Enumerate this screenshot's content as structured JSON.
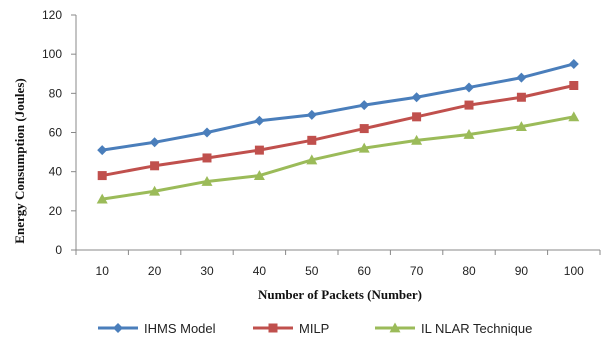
{
  "chart_data": {
    "type": "line",
    "xlabel": "Number  of Packets (Number)",
    "ylabel": "Energy  Consumption  (Joules)",
    "categories": [
      "10",
      "20",
      "30",
      "40",
      "50",
      "60",
      "70",
      "80",
      "90",
      "100"
    ],
    "ylim": [
      0,
      120
    ],
    "yticks": [
      "0",
      "20",
      "40",
      "60",
      "80",
      "100",
      "120"
    ],
    "grid": false,
    "legend": "bottom",
    "series": [
      {
        "name": "IHMS Model",
        "color": "#4a7ebb",
        "marker": "diamond",
        "values": [
          51,
          55,
          60,
          66,
          69,
          74,
          78,
          83,
          88,
          95
        ]
      },
      {
        "name": "MILP",
        "color": "#c0504d",
        "marker": "square",
        "values": [
          38,
          43,
          47,
          51,
          56,
          62,
          68,
          74,
          78,
          84
        ]
      },
      {
        "name": "IL NLAR Technique",
        "color": "#9bbb59",
        "marker": "triangle",
        "values": [
          26,
          30,
          35,
          38,
          46,
          52,
          56,
          59,
          63,
          68
        ]
      }
    ]
  }
}
